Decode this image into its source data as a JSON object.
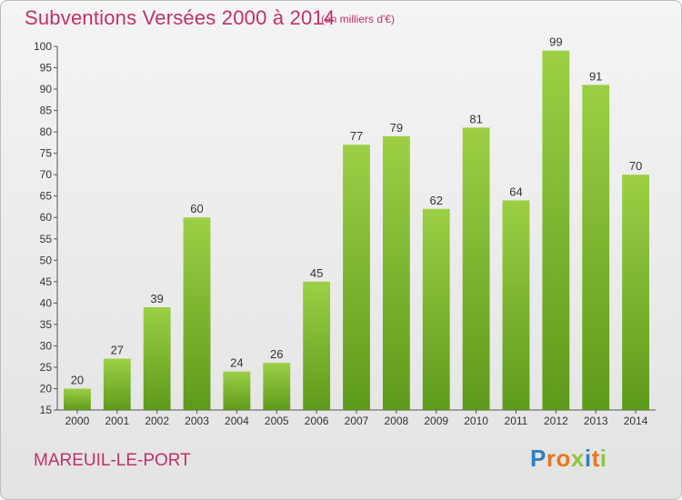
{
  "header": {
    "title": "Subventions Versées 2000 à 2014",
    "unit_note": "(en milliers d'€)"
  },
  "footer": {
    "commune": "MAREUIL-LE-PORT",
    "logo_text": "Proxiti",
    "logo_letters": [
      {
        "ch": "P",
        "color": "#2f7fc1"
      },
      {
        "ch": "r",
        "color": "#e8761e"
      },
      {
        "ch": "o",
        "color": "#e8761e"
      },
      {
        "ch": "x",
        "color": "#8dc63f"
      },
      {
        "ch": "i",
        "color": "#2f7fc1"
      },
      {
        "ch": "t",
        "color": "#e8761e"
      },
      {
        "ch": "i",
        "color": "#8dc63f"
      }
    ]
  },
  "chart_data": {
    "type": "bar",
    "title": "Subventions Versées 2000 à 2014",
    "subtitle": "(en milliers d'€)",
    "xlabel": "",
    "ylabel": "",
    "categories": [
      "2000",
      "2001",
      "2002",
      "2003",
      "2004",
      "2005",
      "2006",
      "2007",
      "2008",
      "2009",
      "2010",
      "2011",
      "2012",
      "2013",
      "2014"
    ],
    "values": [
      20,
      27,
      39,
      60,
      24,
      26,
      45,
      77,
      79,
      62,
      81,
      64,
      99,
      91,
      70
    ],
    "ylim": [
      15,
      100
    ],
    "yticks": [
      15,
      20,
      25,
      30,
      35,
      40,
      45,
      50,
      55,
      60,
      65,
      70,
      75,
      80,
      85,
      90,
      95,
      100
    ],
    "grid": false,
    "legend": "none",
    "bar_color_top": "#9ccf45",
    "bar_color_bottom": "#5e9a1a",
    "data_labels": true
  }
}
